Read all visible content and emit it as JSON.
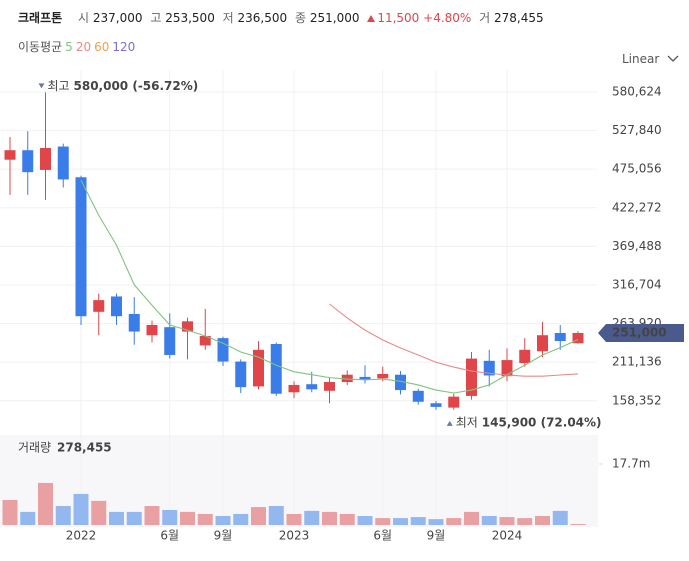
{
  "header": {
    "title": "크래프톤",
    "items": [
      {
        "label": "시",
        "value": "237,000"
      },
      {
        "label": "고",
        "value": "253,500"
      },
      {
        "label": "저",
        "value": "236,500"
      },
      {
        "label": "종",
        "value": "251,000"
      }
    ],
    "change": "11,500",
    "change_pct": "+4.80%",
    "volume_label": "거",
    "volume_value": "278,455"
  },
  "scale_menu": "Linear",
  "chart_data": {
    "type": "candlestick",
    "categories": [
      null,
      null,
      null,
      null,
      "2022",
      null,
      null,
      null,
      null,
      "6월",
      null,
      null,
      "9월",
      null,
      null,
      null,
      "2023",
      null,
      null,
      null,
      null,
      "6월",
      null,
      null,
      "9월",
      null,
      null,
      null,
      "2024",
      null,
      null,
      null,
      null
    ],
    "open": [
      488000,
      501000,
      474000,
      506000,
      464000,
      280000,
      301000,
      277000,
      248000,
      259000,
      253000,
      234000,
      244000,
      212000,
      178000,
      236000,
      170000,
      181000,
      172000,
      184000,
      191000,
      189000,
      194000,
      172000,
      155000,
      149000,
      165000,
      213000,
      192000,
      210000,
      226000,
      251000,
      237000
    ],
    "high": [
      519000,
      527000,
      580000,
      510000,
      466000,
      305000,
      305000,
      300000,
      268000,
      278000,
      272000,
      284000,
      246000,
      215000,
      240000,
      238000,
      185000,
      198000,
      190000,
      200000,
      207000,
      205000,
      199000,
      175000,
      158000,
      168000,
      225000,
      228000,
      230000,
      244000,
      266000,
      262000,
      253500
    ],
    "low": [
      440000,
      440000,
      433000,
      450000,
      262000,
      248000,
      262000,
      235000,
      238000,
      216000,
      215000,
      228000,
      206000,
      169000,
      174000,
      165000,
      162000,
      170000,
      155000,
      180000,
      182000,
      185000,
      167000,
      153000,
      146000,
      145900,
      160000,
      178000,
      185000,
      205000,
      218000,
      228000,
      236500
    ],
    "close": [
      501000,
      471000,
      504000,
      461000,
      274000,
      296000,
      274000,
      253000,
      262000,
      221000,
      267000,
      247000,
      212000,
      177000,
      228000,
      168000,
      180000,
      174000,
      184000,
      194000,
      187000,
      195000,
      173000,
      157000,
      150000,
      164000,
      216000,
      193000,
      214000,
      228000,
      248000,
      240000,
      251000
    ],
    "up_color": "#e0454a",
    "down_color": "#3a7ce8",
    "ylim": [
      118400,
      597000
    ],
    "yticks": [
      {
        "value": 158352,
        "label": "158,352"
      },
      {
        "value": 211136,
        "label": "211,136"
      },
      {
        "value": 263920,
        "label": "263,920"
      },
      {
        "value": 316704,
        "label": "316,704"
      },
      {
        "value": 369488,
        "label": "369,488"
      },
      {
        "value": 422272,
        "label": "422,272"
      },
      {
        "value": 475056,
        "label": "475,056"
      },
      {
        "value": 527840,
        "label": "527,840"
      },
      {
        "value": 580624,
        "label": "580,624"
      }
    ],
    "last_price": {
      "value": 251000,
      "label": "251,000"
    },
    "moving_averages_label": "이동평균",
    "moving_averages": [
      {
        "name": "5",
        "color": "#7fc47f",
        "values": [
          null,
          null,
          null,
          null,
          460000,
          412000,
          371000,
          317000,
          289000,
          262000,
          255000,
          247000,
          237000,
          225000,
          218000,
          207000,
          198000,
          194000,
          190000,
          188000,
          187000,
          188000,
          185000,
          180000,
          173000,
          169000,
          173000,
          180000,
          194000,
          207000,
          221000,
          231000,
          242000
        ]
      },
      {
        "name": "20",
        "color": "#e88a8a",
        "values": [
          null,
          null,
          null,
          null,
          null,
          null,
          null,
          null,
          null,
          null,
          null,
          null,
          null,
          null,
          null,
          null,
          null,
          null,
          290700,
          271600,
          255000,
          241500,
          230500,
          221000,
          211000,
          204500,
          199000,
          196000,
          193600,
          192000,
          192000,
          193600,
          195000
        ]
      },
      {
        "name": "60",
        "color": "#f0a050",
        "values": [
          null,
          null,
          null,
          null,
          null,
          null,
          null,
          null,
          null,
          null,
          null,
          null,
          null,
          null,
          null,
          null,
          null,
          null,
          null,
          null,
          null,
          null,
          null,
          null,
          null,
          null,
          null,
          null,
          null,
          null,
          null,
          null,
          null
        ]
      },
      {
        "name": "120",
        "color": "#7b6fd6",
        "values": [
          null,
          null,
          null,
          null,
          null,
          null,
          null,
          null,
          null,
          null,
          null,
          null,
          null,
          null,
          null,
          null,
          null,
          null,
          null,
          null,
          null,
          null,
          null,
          null,
          null,
          null,
          null,
          null,
          null,
          null,
          null,
          null,
          null
        ]
      }
    ],
    "annotations": [
      {
        "label": "최고",
        "text": "580,000 (-56.72%)",
        "value": 580000
      },
      {
        "label": "최저",
        "text": "145,900 (72.04%)",
        "value": 145900
      }
    ],
    "volume_title": "거래량",
    "volume_value": "278,455",
    "volume": [
      7250000,
      3800000,
      12200000,
      5500000,
      9000000,
      7000000,
      3800000,
      3800000,
      5500000,
      4350000,
      3800000,
      3200000,
      2600000,
      3200000,
      5200000,
      5500000,
      3200000,
      4100000,
      3800000,
      3200000,
      2600000,
      2000000,
      2000000,
      2300000,
      1700000,
      2000000,
      3800000,
      2600000,
      2300000,
      2000000,
      2600000,
      4100000,
      278455
    ],
    "volume_up_color": "#e8a0a3",
    "volume_down_color": "#93b8f0",
    "vylim": [
      0,
      26100000
    ],
    "vyticks": [
      {
        "value": 17700000,
        "label": "17.7m"
      }
    ],
    "grid": true
  }
}
